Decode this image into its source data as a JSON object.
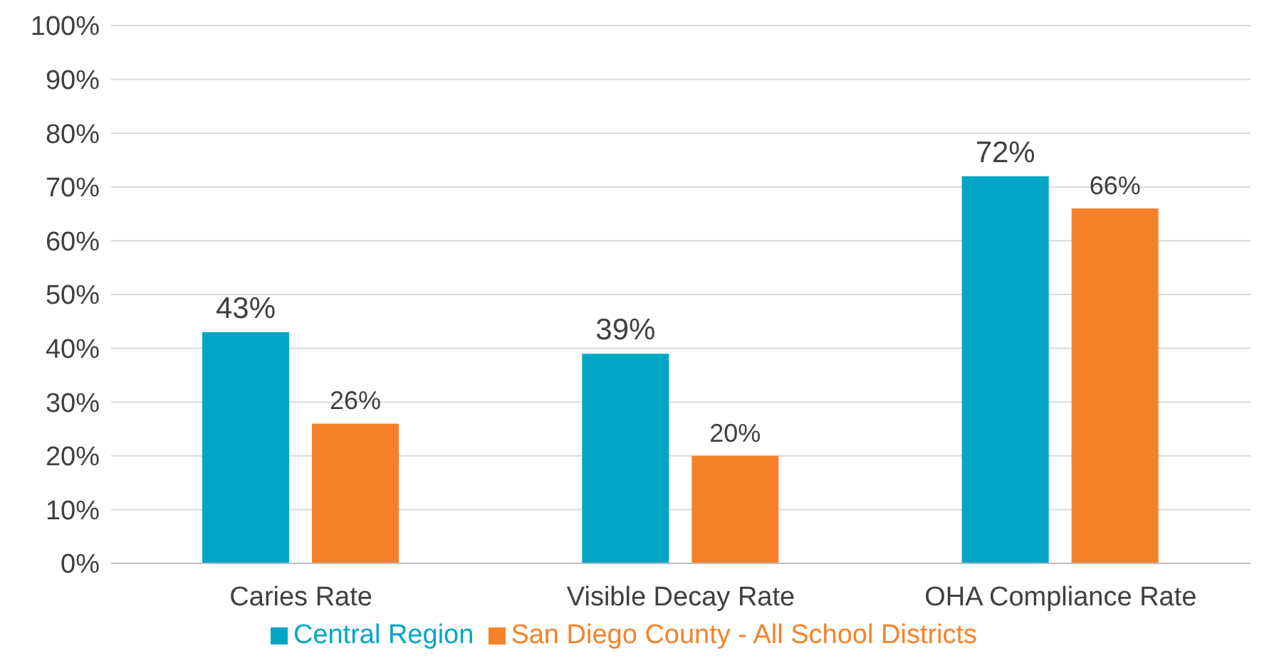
{
  "chart_data": {
    "type": "bar",
    "categories": [
      "Caries Rate",
      "Visible Decay Rate",
      "OHA Compliance Rate"
    ],
    "series": [
      {
        "name": "Central Region",
        "color": "#00a6c3",
        "values": [
          43,
          39,
          72
        ],
        "value_labels": [
          "43%",
          "39%",
          "72%"
        ]
      },
      {
        "name": "San Diego County - All School Districts",
        "color": "#f5822a",
        "values": [
          26,
          20,
          66
        ],
        "value_labels": [
          "26%",
          "20%",
          "66%"
        ]
      }
    ],
    "ylim": [
      0,
      100
    ],
    "yticks": [
      {
        "value": 0,
        "label": "0%"
      },
      {
        "value": 10,
        "label": "10%"
      },
      {
        "value": 20,
        "label": "20%"
      },
      {
        "value": 30,
        "label": "30%"
      },
      {
        "value": 40,
        "label": "40%"
      },
      {
        "value": 50,
        "label": "50%"
      },
      {
        "value": 60,
        "label": "60%"
      },
      {
        "value": 70,
        "label": "70%"
      },
      {
        "value": 80,
        "label": "80%"
      },
      {
        "value": 90,
        "label": "90%"
      },
      {
        "value": 100,
        "label": "100%"
      }
    ],
    "grid": "y",
    "legend": "bottom"
  }
}
